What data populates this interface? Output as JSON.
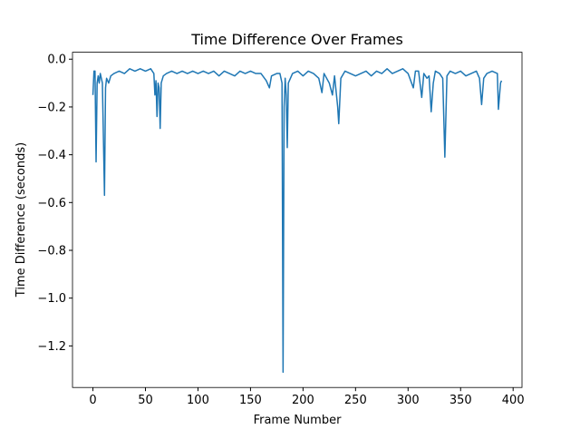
{
  "chart_data": {
    "type": "line",
    "title": "Time Difference Over Frames",
    "x_label": "Frame Number",
    "y_label": "Time Difference (seconds)",
    "x": [
      0,
      1,
      2,
      3,
      4,
      5,
      6,
      7,
      8,
      9,
      11,
      12,
      13,
      15,
      17,
      20,
      25,
      30,
      35,
      40,
      45,
      50,
      55,
      58,
      59,
      60,
      61,
      62,
      63,
      64,
      65,
      67,
      70,
      75,
      80,
      85,
      90,
      95,
      100,
      105,
      110,
      115,
      120,
      125,
      130,
      135,
      140,
      145,
      150,
      155,
      160,
      165,
      168,
      170,
      175,
      178,
      180,
      181,
      182,
      183,
      184,
      185,
      186,
      188,
      190,
      195,
      200,
      205,
      210,
      215,
      218,
      220,
      225,
      228,
      230,
      233,
      234,
      236,
      240,
      245,
      250,
      255,
      260,
      265,
      270,
      275,
      280,
      285,
      290,
      295,
      300,
      305,
      307,
      310,
      313,
      315,
      318,
      320,
      322,
      324,
      326,
      330,
      333,
      335,
      337,
      340,
      345,
      350,
      355,
      360,
      365,
      368,
      370,
      372,
      375,
      380,
      385,
      386,
      388,
      389
    ],
    "series": [
      {
        "color": "#1f77b4",
        "values": [
          -0.15,
          -0.05,
          -0.05,
          -0.43,
          -0.1,
          -0.07,
          -0.1,
          -0.06,
          -0.08,
          -0.1,
          -0.57,
          -0.12,
          -0.08,
          -0.1,
          -0.07,
          -0.06,
          -0.05,
          -0.06,
          -0.04,
          -0.05,
          -0.04,
          -0.05,
          -0.04,
          -0.06,
          -0.15,
          -0.09,
          -0.24,
          -0.1,
          -0.12,
          -0.29,
          -0.1,
          -0.07,
          -0.06,
          -0.05,
          -0.06,
          -0.05,
          -0.06,
          -0.05,
          -0.06,
          -0.05,
          -0.06,
          -0.05,
          -0.07,
          -0.05,
          -0.06,
          -0.07,
          -0.05,
          -0.06,
          -0.05,
          -0.06,
          -0.06,
          -0.09,
          -0.12,
          -0.07,
          -0.06,
          -0.06,
          -0.1,
          -1.31,
          -0.2,
          -0.08,
          -0.15,
          -0.37,
          -0.1,
          -0.08,
          -0.06,
          -0.05,
          -0.07,
          -0.05,
          -0.06,
          -0.08,
          -0.14,
          -0.06,
          -0.1,
          -0.15,
          -0.07,
          -0.2,
          -0.27,
          -0.08,
          -0.05,
          -0.06,
          -0.07,
          -0.06,
          -0.05,
          -0.07,
          -0.05,
          -0.06,
          -0.04,
          -0.06,
          -0.05,
          -0.04,
          -0.06,
          -0.12,
          -0.05,
          -0.05,
          -0.16,
          -0.06,
          -0.08,
          -0.07,
          -0.22,
          -0.1,
          -0.05,
          -0.06,
          -0.08,
          -0.41,
          -0.07,
          -0.05,
          -0.06,
          -0.05,
          -0.07,
          -0.06,
          -0.05,
          -0.08,
          -0.19,
          -0.08,
          -0.06,
          -0.05,
          -0.06,
          -0.21,
          -0.1,
          -0.09
        ]
      }
    ],
    "xlim": [
      -19.45,
      408.45
    ],
    "ylim": [
      -1.374,
      0.029
    ],
    "xticks": [
      0,
      50,
      100,
      150,
      200,
      250,
      300,
      350,
      400
    ],
    "yticks": [
      {
        "value": 0,
        "label": "0.0"
      },
      {
        "value": -0.2,
        "label": "−0.2"
      },
      {
        "value": -0.4,
        "label": "−0.4"
      },
      {
        "value": -0.6,
        "label": "−0.6"
      },
      {
        "value": -0.8,
        "label": "−0.8"
      },
      {
        "value": -1.0,
        "label": "−1.0"
      },
      {
        "value": -1.2,
        "label": "−1.2"
      }
    ]
  }
}
